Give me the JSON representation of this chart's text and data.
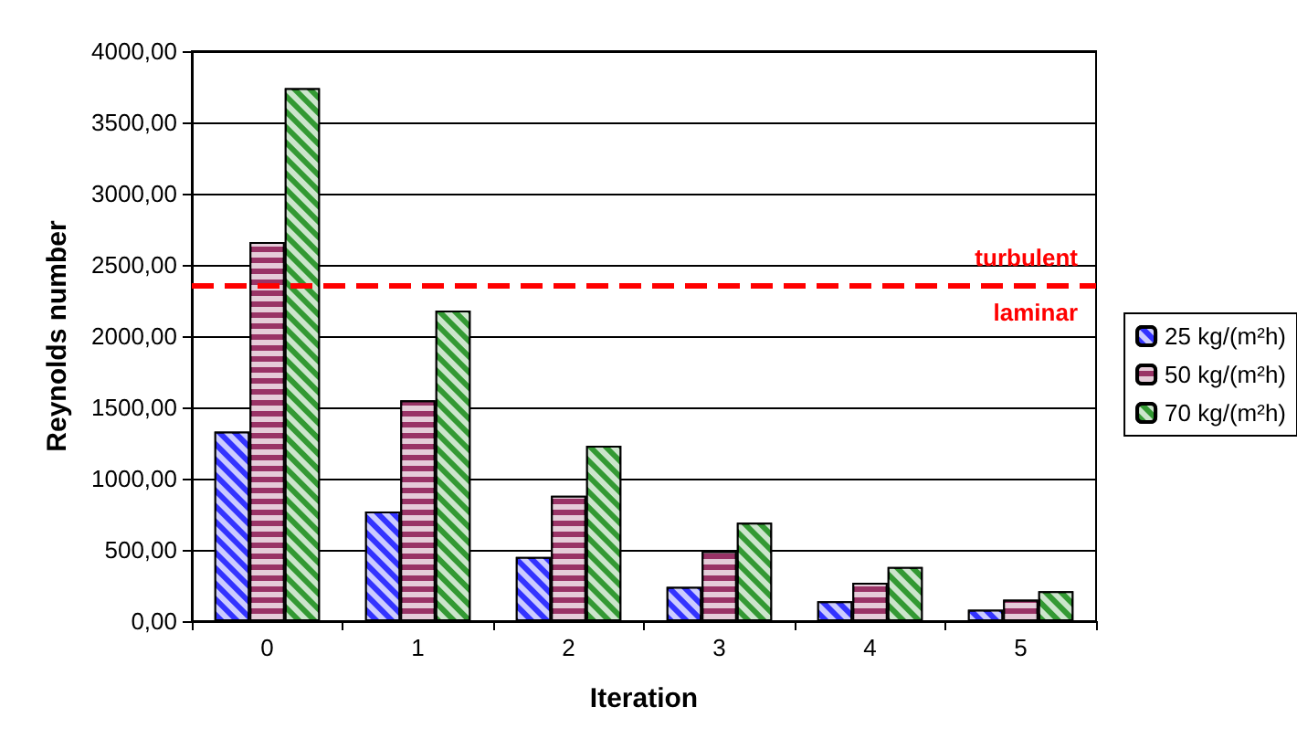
{
  "chart_data": {
    "type": "bar",
    "xlabel": "Iteration",
    "ylabel": "Reynolds number",
    "categories": [
      "0",
      "1",
      "2",
      "3",
      "4",
      "5"
    ],
    "series": [
      {
        "name": "25 kg/(m²h)",
        "color": "#3333ff",
        "values": [
          1330,
          770,
          450,
          240,
          140,
          80
        ]
      },
      {
        "name": "50 kg/(m²h)",
        "color": "#993366",
        "values": [
          2660,
          1550,
          880,
          490,
          270,
          150
        ]
      },
      {
        "name": "70 kg/(m²h)",
        "color": "#339933",
        "values": [
          3740,
          2180,
          1230,
          690,
          380,
          210
        ]
      }
    ],
    "ylim": [
      0,
      4000
    ],
    "yticks": [
      {
        "value": 0,
        "label": "0,00"
      },
      {
        "value": 500,
        "label": "500,00"
      },
      {
        "value": 1000,
        "label": "1000,00"
      },
      {
        "value": 1500,
        "label": "1500,00"
      },
      {
        "value": 2000,
        "label": "2000,00"
      },
      {
        "value": 2500,
        "label": "2500,00"
      },
      {
        "value": 3000,
        "label": "3000,00"
      },
      {
        "value": 3500,
        "label": "3500,00"
      },
      {
        "value": 4000,
        "label": "4000,00"
      }
    ],
    "ref_lines": [
      {
        "axis": "y",
        "value": 2350,
        "color": "#ff0000",
        "line_style": "dashed"
      }
    ],
    "annotations": [
      {
        "text": "turbulent",
        "y": 2350
      },
      {
        "text": "laminar",
        "y": 2350
      }
    ],
    "grid": "y",
    "legend": "right"
  }
}
